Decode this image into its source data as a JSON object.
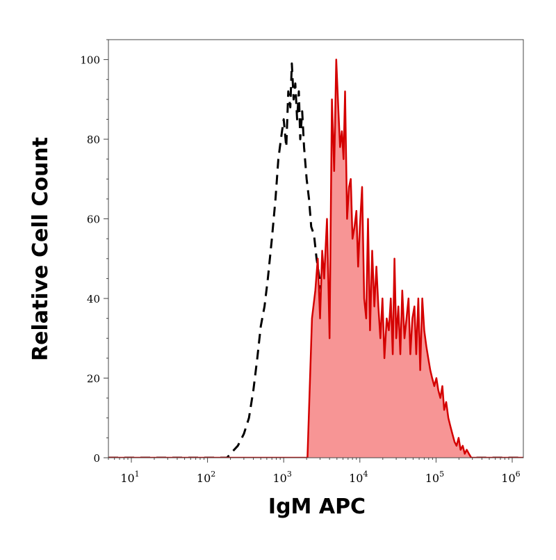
{
  "chart_data": {
    "type": "area",
    "xlabel": "IgM APC",
    "ylabel": "Relative Cell Count",
    "x_scale": "log",
    "xlim": [
      5,
      1400000
    ],
    "ylim": [
      0,
      105
    ],
    "x_ticks": [
      10,
      100,
      1000,
      10000,
      100000,
      1000000
    ],
    "x_tick_labels": [
      {
        "base": "10",
        "exp": "1"
      },
      {
        "base": "10",
        "exp": "2"
      },
      {
        "base": "10",
        "exp": "3"
      },
      {
        "base": "10",
        "exp": "4"
      },
      {
        "base": "10",
        "exp": "5"
      },
      {
        "base": "10",
        "exp": "6"
      }
    ],
    "y_ticks": [
      0,
      20,
      40,
      60,
      80,
      100
    ],
    "y_tick_labels": [
      "0",
      "20",
      "40",
      "60",
      "80",
      "100"
    ],
    "grid": false,
    "legend": "none",
    "series": [
      {
        "style": "dashed-line",
        "color": "#000000",
        "x": [
          5,
          180,
          200,
          250,
          300,
          350,
          400,
          450,
          500,
          560,
          620,
          700,
          780,
          850,
          920,
          1000,
          1080,
          1150,
          1220,
          1280,
          1350,
          1420,
          1500,
          1580,
          1650,
          1750,
          1850,
          2000,
          2150,
          2300,
          2500,
          2700,
          2950,
          3200,
          3450,
          3700,
          4000,
          1400000
        ],
        "y": [
          0,
          0,
          1,
          3,
          6,
          10,
          17,
          25,
          33,
          38,
          45,
          55,
          65,
          75,
          80,
          85,
          78,
          92,
          88,
          99,
          90,
          94,
          85,
          92,
          80,
          87,
          78,
          70,
          65,
          58,
          56,
          50,
          45,
          40,
          35,
          20,
          0,
          0
        ]
      },
      {
        "style": "filled-area",
        "color": "#d40000",
        "fill": "#f79595",
        "x": [
          5,
          2050,
          2350,
          2600,
          2800,
          3000,
          3200,
          3400,
          3700,
          4000,
          4300,
          4600,
          4900,
          5200,
          5500,
          5800,
          6100,
          6400,
          6800,
          7200,
          7600,
          8000,
          8500,
          9000,
          9500,
          10000,
          10700,
          11400,
          12100,
          12800,
          13600,
          14500,
          15500,
          16500,
          17500,
          18600,
          19800,
          21000,
          22500,
          24000,
          25500,
          27000,
          28500,
          30000,
          32000,
          34000,
          36000,
          38500,
          41000,
          43500,
          46000,
          49000,
          52000,
          55000,
          58500,
          62000,
          66000,
          70000,
          74500,
          79000,
          84000,
          89000,
          95000,
          101000,
          107000,
          114000,
          121000,
          128000,
          136000,
          145000,
          154000,
          164000,
          175000,
          186000,
          198000,
          210000,
          224000,
          238000,
          253000,
          270000,
          290000,
          310000,
          1400000
        ],
        "y": [
          0,
          0,
          35,
          42,
          50,
          35,
          52,
          45,
          60,
          30,
          90,
          72,
          100,
          88,
          78,
          82,
          75,
          92,
          60,
          68,
          70,
          55,
          58,
          62,
          48,
          58,
          68,
          40,
          35,
          60,
          32,
          52,
          38,
          48,
          38,
          30,
          40,
          25,
          35,
          32,
          40,
          26,
          50,
          30,
          38,
          26,
          42,
          30,
          35,
          40,
          26,
          35,
          38,
          26,
          40,
          22,
          40,
          32,
          28,
          25,
          22,
          20,
          18,
          20,
          17,
          15,
          18,
          12,
          14,
          10,
          8,
          6,
          4,
          3,
          5,
          2,
          3,
          1,
          2,
          1,
          0,
          0,
          0
        ]
      }
    ]
  }
}
